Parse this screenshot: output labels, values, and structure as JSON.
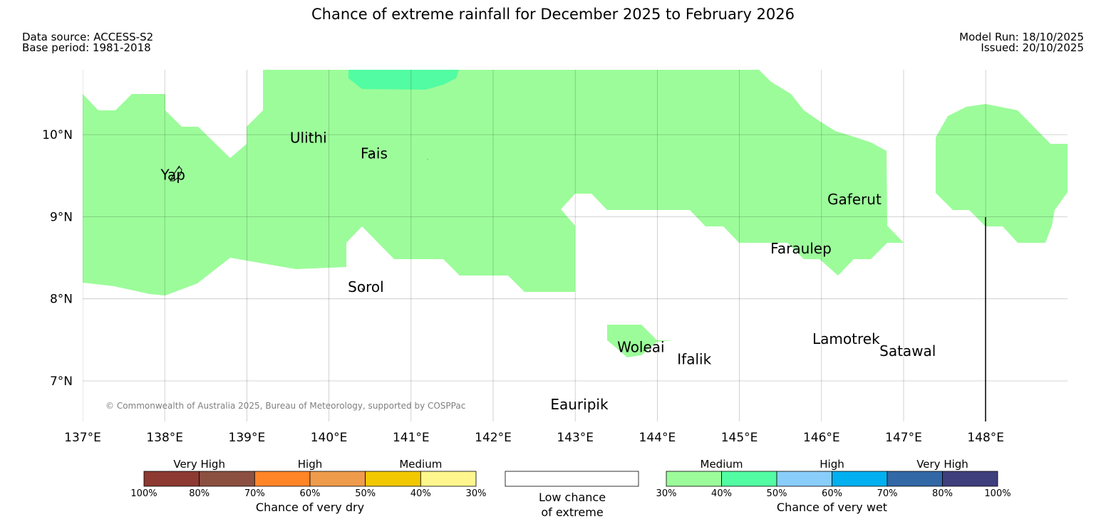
{
  "title": "Chance of extreme rainfall for December 2025 to February 2026",
  "meta": {
    "data_source": "Data source: ACCESS-S2",
    "base_period": "Base period: 1981-2018",
    "model_run": "Model Run: 18/10/2025",
    "issued": "Issued: 20/10/2025"
  },
  "map": {
    "lon_range": [
      137,
      149
    ],
    "lat_range": [
      6.5,
      10.8
    ],
    "lon_ticks": [
      "137°E",
      "138°E",
      "139°E",
      "140°E",
      "141°E",
      "142°E",
      "143°E",
      "144°E",
      "145°E",
      "146°E",
      "147°E",
      "148°E"
    ],
    "lat_ticks": [
      "10°N",
      "9°N",
      "8°N",
      "7°N"
    ],
    "copyright": "© Commonwealth of Australia 2025, Bureau of Meteorology, supported by COSPPac",
    "places": [
      {
        "name": "Yap",
        "lon": 138.1,
        "lat": 9.5
      },
      {
        "name": "Ulithi",
        "lon": 139.75,
        "lat": 9.95
      },
      {
        "name": "Fais",
        "lon": 140.55,
        "lat": 9.76
      },
      {
        "name": "Sorol",
        "lon": 140.45,
        "lat": 8.13
      },
      {
        "name": "Gaferut",
        "lon": 146.4,
        "lat": 9.2
      },
      {
        "name": "Faraulep",
        "lon": 145.75,
        "lat": 8.6
      },
      {
        "name": "Woleai",
        "lon": 143.8,
        "lat": 7.4
      },
      {
        "name": "Ifalik",
        "lon": 144.45,
        "lat": 7.25
      },
      {
        "name": "Lamotrek",
        "lon": 146.3,
        "lat": 7.5
      },
      {
        "name": "Satawal",
        "lon": 147.05,
        "lat": 7.35
      },
      {
        "name": "Eauripik",
        "lon": 143.05,
        "lat": 6.7
      }
    ],
    "region_colors": {
      "medium_wet": "#9cfc9a",
      "high_wet": "#52fca2",
      "outline": "#000000"
    }
  },
  "legend": {
    "dry": {
      "groups": [
        "Very High",
        "High",
        "Medium"
      ],
      "colors": [
        "#8c3a32",
        "#8b5040",
        "#ff8526",
        "#ee9b4c",
        "#f2c800",
        "#fff68e"
      ],
      "ticks": [
        "100%",
        "80%",
        "70%",
        "60%",
        "50%",
        "40%",
        "30%"
      ],
      "caption": "Chance of very dry"
    },
    "low": {
      "line1": "Low chance",
      "line2": "of extreme"
    },
    "wet": {
      "groups": [
        "Medium",
        "High",
        "Very High"
      ],
      "colors": [
        "#9cfc9a",
        "#52fca2",
        "#89cdfb",
        "#00b0f0",
        "#3368a6",
        "#403f7e"
      ],
      "ticks": [
        "30%",
        "40%",
        "50%",
        "60%",
        "70%",
        "80%",
        "100%"
      ],
      "caption": "Chance of very wet"
    }
  }
}
